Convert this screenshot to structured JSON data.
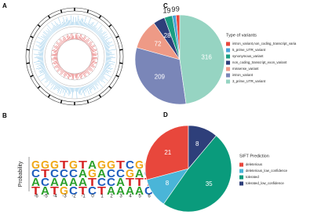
{
  "chart_data": [
    {
      "type": "circos",
      "panel": "A"
    },
    {
      "type": "logo",
      "panel": "B",
      "ylabel": "Probability",
      "xticks": [
        -6,
        -5,
        -4,
        -3,
        -2,
        -1,
        0,
        1,
        2,
        3,
        4,
        5,
        6
      ],
      "stacks": [
        [
          "G",
          "C",
          "A",
          "T"
        ],
        [
          "G",
          "T",
          "C",
          "A"
        ],
        [
          "G",
          "C",
          "A",
          "T"
        ],
        [
          "T",
          "C",
          "A",
          "G"
        ],
        [
          "G",
          "C",
          "A",
          "C"
        ],
        [
          "T",
          "A",
          "A",
          "T"
        ],
        [
          "A",
          "G",
          "T",
          "C"
        ],
        [
          "G",
          "A",
          "C",
          "T"
        ],
        [
          "G",
          "C",
          "C",
          "A"
        ],
        [
          "T",
          "C",
          "A",
          "A"
        ],
        [
          "C",
          "G",
          "T",
          "A"
        ],
        [
          "G",
          "A",
          "T",
          "A"
        ],
        [
          "G",
          "C",
          "T",
          "C"
        ]
      ],
      "letter_colors": {
        "A": "#2ca02c",
        "C": "#1f5fbf",
        "G": "#f0a818",
        "T": "#d62728"
      }
    },
    {
      "type": "pie",
      "panel": "C",
      "legend_title": "Type of variants",
      "series": [
        {
          "name": "intron_variant,non_coding_transcript_varia",
          "color": "#e8473c",
          "values": [
            9
          ]
        },
        {
          "name": "5_prime_UTR_variant",
          "color": "#4aa3d8",
          "values": [
            9
          ]
        },
        {
          "name": "synonymous_variant",
          "color": "#1a9e82",
          "values": [
            19
          ]
        },
        {
          "name": "non_coding_transcript_exon_variant",
          "color": "#2e3f7a",
          "values": [
            28
          ]
        },
        {
          "name": "missense_variant",
          "color": "#ee9a86",
          "values": [
            72
          ]
        },
        {
          "name": "intron_variant",
          "color": "#7a86b8",
          "values": [
            209
          ]
        },
        {
          "name": "3_prime_UTR_variant",
          "color": "#96d4c2",
          "values": [
            316
          ]
        }
      ]
    },
    {
      "type": "pie",
      "panel": "D",
      "legend_title": "SIFT Prediction",
      "series": [
        {
          "name": "deleterious",
          "color": "#e8473c",
          "values": [
            21
          ]
        },
        {
          "name": "deleterious_low_confidence",
          "color": "#4ab5d8",
          "values": [
            8
          ]
        },
        {
          "name": "tolerated",
          "color": "#0a9b7c",
          "values": [
            35
          ]
        },
        {
          "name": "tolerated_low_confidence",
          "color": "#2e3f7a",
          "values": [
            8
          ]
        }
      ]
    }
  ]
}
